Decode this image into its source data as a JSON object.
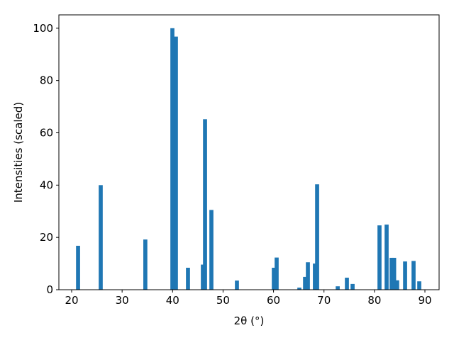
{
  "chart_data": {
    "type": "bar",
    "x": [
      21.27,
      25.76,
      34.6,
      39.96,
      40.66,
      43.05,
      46.0,
      46.43,
      47.69,
      52.75,
      60.06,
      60.62,
      65.12,
      66.25,
      66.81,
      68.2,
      68.64,
      72.72,
      74.54,
      75.67,
      81.0,
      82.41,
      83.4,
      83.9,
      84.5,
      86.07,
      87.75,
      88.88
    ],
    "values": [
      16.8,
      40,
      19.2,
      100,
      96.8,
      8.4,
      9.6,
      65.2,
      30.5,
      3.5,
      8.4,
      12.3,
      0.8,
      4.9,
      10.5,
      10,
      40.3,
      1.3,
      4.6,
      2.2,
      24.6,
      24.9,
      12.2,
      12.2,
      3.6,
      10.8,
      11,
      3.2
    ],
    "color": "#1f77b4",
    "xlabel": "2θ (°)",
    "ylabel": "Intensities (scaled)",
    "xlim": [
      17.47,
      92.81
    ],
    "xticks": [
      20,
      30,
      40,
      50,
      60,
      70,
      80,
      90
    ],
    "ylim": [
      0,
      105.1
    ],
    "yticks": [
      0,
      20,
      40,
      60,
      80,
      100
    ]
  }
}
